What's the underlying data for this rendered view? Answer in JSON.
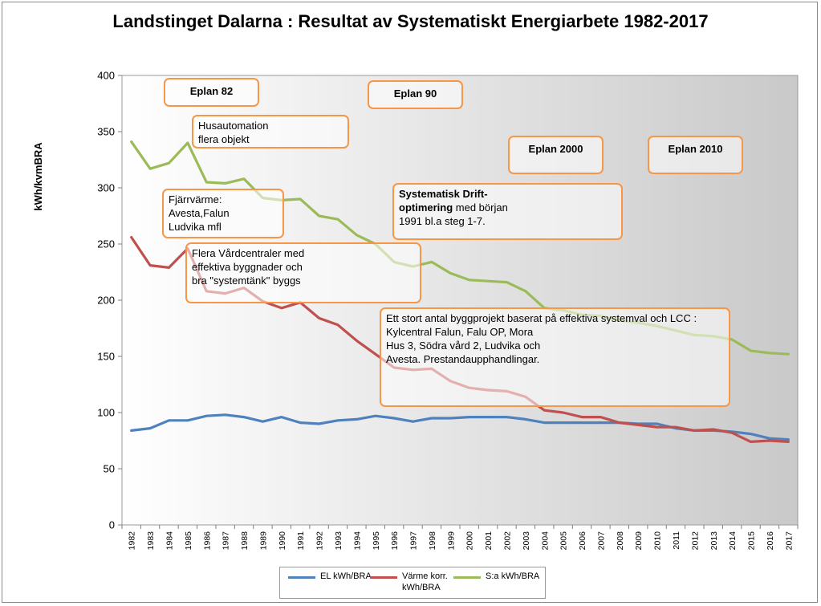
{
  "chart_data": {
    "type": "line",
    "title": "Landstinget Dalarna : Resultat av Systematiskt Energiarbete 1982-2017",
    "ylabel": "kWh/kvmBRA",
    "xlabel": "",
    "ylim": [
      0,
      400
    ],
    "yticks": [
      0,
      50,
      100,
      150,
      200,
      250,
      300,
      350,
      400
    ],
    "grid": false,
    "legend_position": "bottom",
    "categories": [
      "1982",
      "1983",
      "1984",
      "1985",
      "1986",
      "1987",
      "1988",
      "1989",
      "1990",
      "1991",
      "1992",
      "1993",
      "1994",
      "1995",
      "1996",
      "1997",
      "1998",
      "1999",
      "2000",
      "2001",
      "2002",
      "2003",
      "2004",
      "2005",
      "2006",
      "2007",
      "2008",
      "2009",
      "2010",
      "2011",
      "2012",
      "2013",
      "2014",
      "2015",
      "2016",
      "2017"
    ],
    "series": [
      {
        "name": "EL kWh/BRA",
        "color": "#4f81bd",
        "values": [
          84,
          86,
          93,
          93,
          97,
          98,
          96,
          92,
          96,
          91,
          90,
          93,
          94,
          97,
          95,
          92,
          95,
          95,
          96,
          96,
          96,
          94,
          91,
          91,
          91,
          91,
          91,
          90,
          90,
          86,
          84,
          84,
          83,
          81,
          77,
          76
        ]
      },
      {
        "name": "Värme korr. kWh/BRA",
        "color": "#c0504d",
        "values": [
          256,
          231,
          229,
          246,
          208,
          206,
          211,
          199,
          193,
          198,
          184,
          178,
          164,
          152,
          140,
          138,
          139,
          128,
          122,
          120,
          119,
          114,
          102,
          100,
          96,
          96,
          91,
          89,
          87,
          87,
          84,
          85,
          82,
          74,
          75,
          74
        ]
      },
      {
        "name": "S:a kWh/BRA",
        "color": "#9bbb59",
        "values": [
          341,
          317,
          322,
          340,
          305,
          304,
          308,
          291,
          289,
          290,
          275,
          272,
          258,
          250,
          234,
          230,
          234,
          224,
          218,
          217,
          216,
          208,
          193,
          191,
          187,
          186,
          182,
          180,
          177,
          173,
          169,
          168,
          165,
          155,
          153,
          152
        ]
      }
    ],
    "annotations": [
      {
        "text": "Eplan 82"
      },
      {
        "text": "Eplan 90"
      },
      {
        "text": "Husautomation\nflera objekt"
      },
      {
        "text": "Eplan 2000"
      },
      {
        "text": "Eplan 2010"
      },
      {
        "text": "Fjärrvärme:\nAvesta,Falun\nLudvika mfl"
      },
      {
        "bold": "Systematisk Drift-\noptimering",
        "text": " med början\n1991 bl.a steg 1-7."
      },
      {
        "text": "Flera Vårdcentraler med\neffektiva byggnader och\nbra \"systemtänk\" byggs"
      },
      {
        "text": "Ett stort antal byggprojekt baserat  på effektiva systemval och LCC :\nKylcentral Falun, Falu OP, Mora\nHus 3, Södra vård 2, Ludvika och\nAvesta. Prestandaupphandlingar."
      }
    ],
    "plot_background": [
      "#ffffff",
      "#c9c9c9"
    ]
  }
}
